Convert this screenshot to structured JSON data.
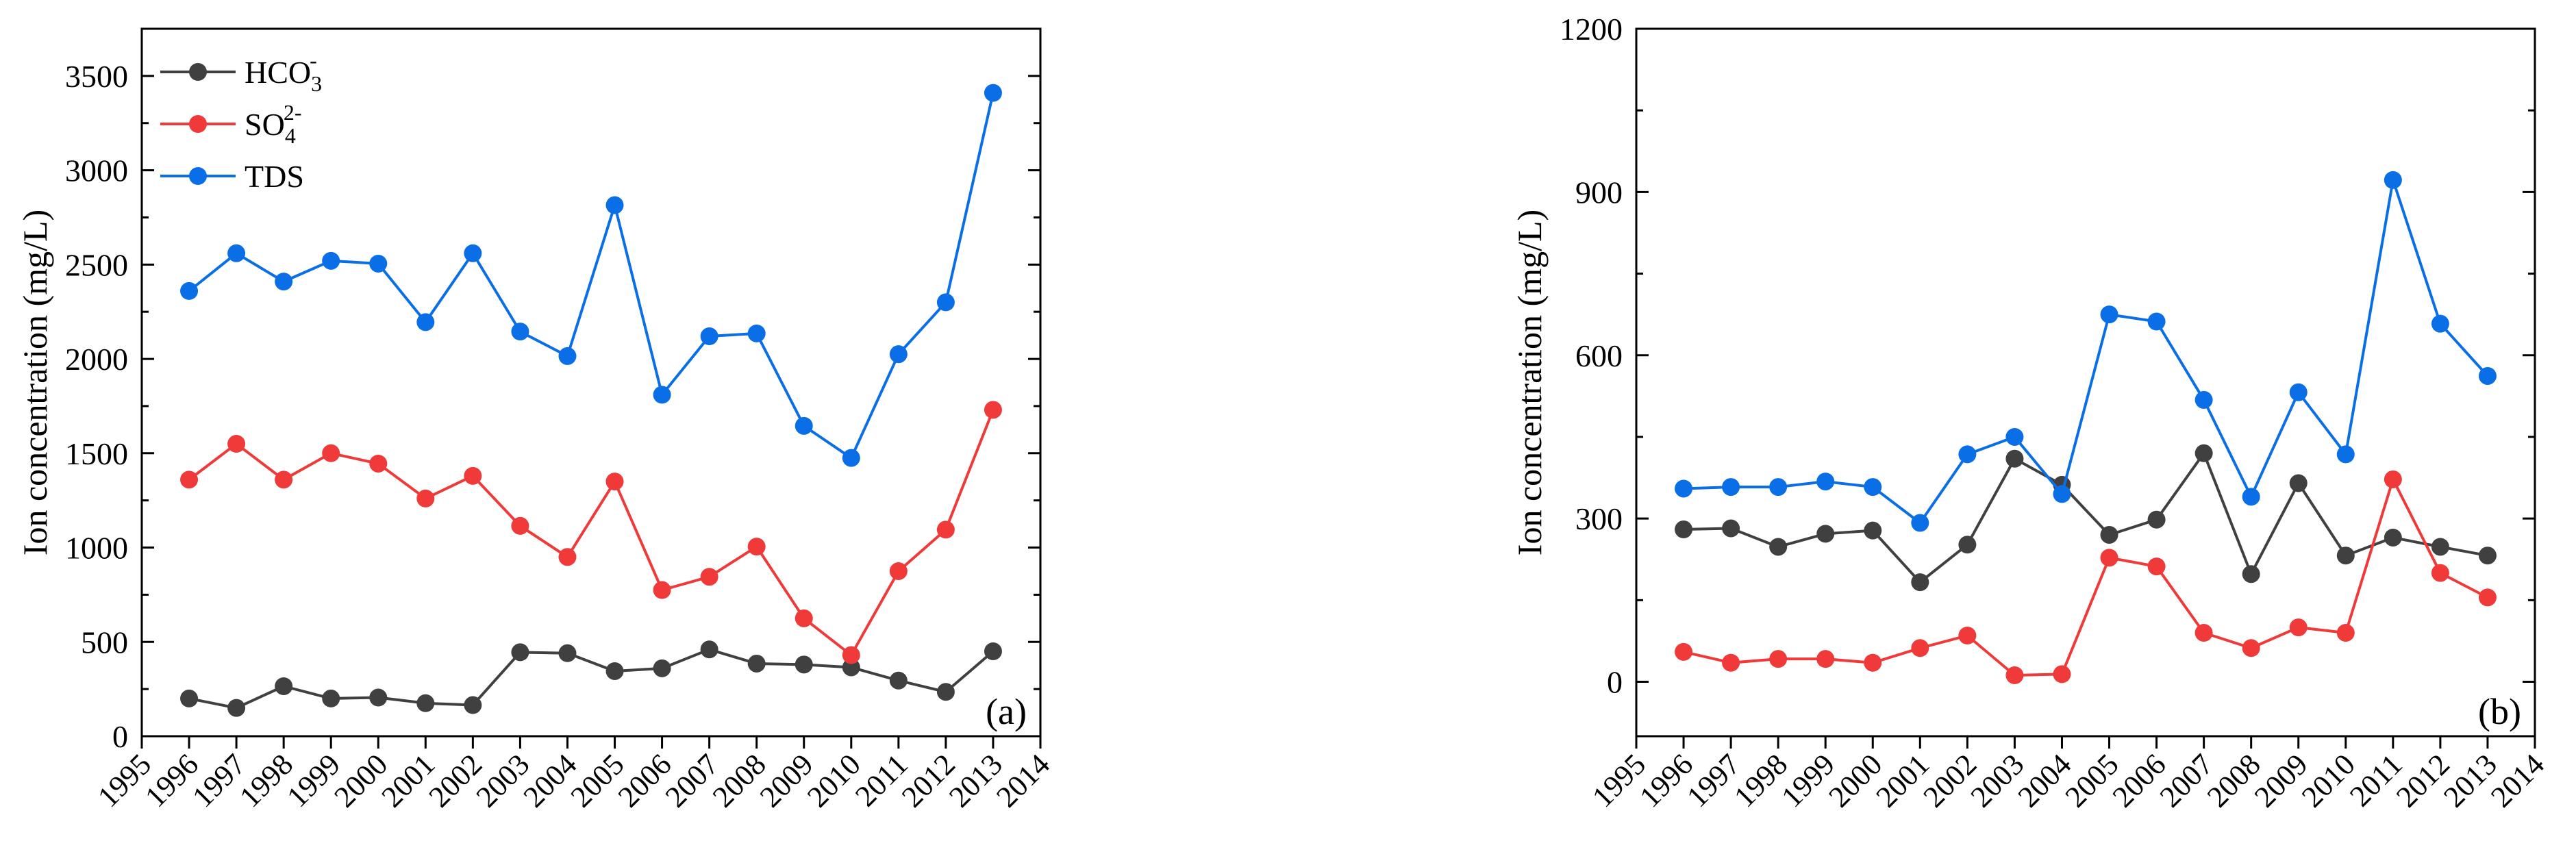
{
  "series_styles": {
    "HCO3": {
      "color": "#404040"
    },
    "SO4": {
      "color": "#f03a3a"
    },
    "TDS": {
      "color": "#0a6fe6"
    }
  },
  "chart_data": [
    {
      "panel": "a",
      "panel_label": "(a)",
      "type": "line",
      "ylabel": "Ion concentration (mg/L)",
      "xlabel": "",
      "xlim": [
        1995,
        2014
      ],
      "ylim": [
        0,
        3750
      ],
      "x_ticks": [
        1995,
        1996,
        1997,
        1998,
        1999,
        2000,
        2001,
        2002,
        2003,
        2004,
        2005,
        2006,
        2007,
        2008,
        2009,
        2010,
        2011,
        2012,
        2013,
        2014
      ],
      "x_tick_labels": [
        "1995",
        "1996",
        "1997",
        "1998",
        "1999",
        "2000",
        "2001",
        "2002",
        "2003",
        "2004",
        "2005",
        "2006",
        "2007",
        "2008",
        "2009",
        "2010",
        "2011",
        "2012",
        "2013",
        "2014"
      ],
      "y_ticks": [
        0,
        500,
        1000,
        1500,
        2000,
        2500,
        3000,
        3500
      ],
      "y_tick_labels": [
        "0",
        "500",
        "1000",
        "1500",
        "2000",
        "2500",
        "3000",
        "3500"
      ],
      "legend": {
        "placement": "top-left",
        "entries": [
          {
            "key": "HCO3",
            "base": "HCO",
            "sub": "3",
            "sup": "-"
          },
          {
            "key": "SO4",
            "base": "SO",
            "sub": "4",
            "sup": "2-"
          },
          {
            "key": "TDS",
            "base": "TDS",
            "sub": "",
            "sup": ""
          }
        ]
      },
      "x": [
        1996,
        1997,
        1998,
        1999,
        2000,
        2001,
        2002,
        2003,
        2004,
        2005,
        2006,
        2007,
        2008,
        2009,
        2010,
        2011,
        2012,
        2013
      ],
      "series": [
        {
          "key": "HCO3",
          "name": "HCO3-",
          "values": [
            200,
            150,
            265,
            200,
            205,
            175,
            165,
            445,
            440,
            345,
            360,
            460,
            385,
            380,
            365,
            295,
            235,
            450
          ]
        },
        {
          "key": "SO4",
          "name": "SO42-",
          "values": [
            1360,
            1550,
            1360,
            1500,
            1445,
            1260,
            1380,
            1115,
            950,
            1350,
            775,
            845,
            1005,
            625,
            430,
            875,
            1095,
            1730
          ]
        },
        {
          "key": "TDS",
          "name": "TDS",
          "values": [
            2360,
            2560,
            2410,
            2520,
            2505,
            2195,
            2560,
            2145,
            2015,
            2815,
            1810,
            2120,
            2135,
            1645,
            1475,
            2025,
            2300,
            3410
          ]
        }
      ]
    },
    {
      "panel": "b",
      "panel_label": "(b)",
      "type": "line",
      "ylabel": "Ion concentration (mg/L)",
      "xlabel": "",
      "xlim": [
        1995,
        2014
      ],
      "ylim": [
        -100,
        1200
      ],
      "x_ticks": [
        1995,
        1996,
        1997,
        1998,
        1999,
        2000,
        2001,
        2002,
        2003,
        2004,
        2005,
        2006,
        2007,
        2008,
        2009,
        2010,
        2011,
        2012,
        2013,
        2014
      ],
      "x_tick_labels": [
        "1995",
        "1996",
        "1997",
        "1998",
        "1999",
        "2000",
        "2001",
        "2002",
        "2003",
        "2004",
        "2005",
        "2006",
        "2007",
        "2008",
        "2009",
        "2010",
        "2011",
        "2012",
        "2013",
        "2014"
      ],
      "y_ticks": [
        0,
        300,
        600,
        900,
        1200
      ],
      "y_tick_labels": [
        "0",
        "300",
        "600",
        "900",
        "1200"
      ],
      "x": [
        1996,
        1997,
        1998,
        1999,
        2000,
        2001,
        2002,
        2003,
        2004,
        2005,
        2006,
        2007,
        2008,
        2009,
        2010,
        2011,
        2012,
        2013
      ],
      "series": [
        {
          "key": "HCO3",
          "name": "HCO3-",
          "values": [
            280,
            282,
            248,
            272,
            278,
            183,
            252,
            410,
            362,
            270,
            298,
            420,
            198,
            365,
            232,
            265,
            248,
            232
          ]
        },
        {
          "key": "SO4",
          "name": "SO42-",
          "values": [
            55,
            35,
            42,
            42,
            35,
            62,
            85,
            12,
            14,
            228,
            212,
            90,
            62,
            100,
            90,
            372,
            200,
            155
          ]
        },
        {
          "key": "TDS",
          "name": "TDS",
          "values": [
            355,
            358,
            358,
            368,
            358,
            292,
            418,
            450,
            345,
            675,
            662,
            518,
            340,
            532,
            418,
            922,
            658,
            562
          ]
        }
      ]
    }
  ]
}
